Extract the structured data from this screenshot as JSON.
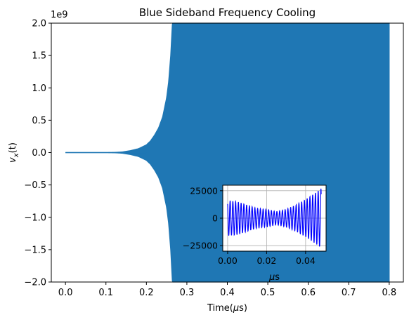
{
  "chart_data": [
    {
      "type": "area",
      "title": "Blue Sideband Frequency Cooling",
      "xlabel": "Time(μs)",
      "ylabel": "v_x(t)",
      "ylabel_main": "v",
      "ylabel_sub": "x",
      "ylabel_rest": "(t)",
      "offset_text": "1e9",
      "xlim": [
        -0.035,
        0.835
      ],
      "ylim": [
        -2.0,
        2.0
      ],
      "xticks": [
        0.0,
        0.1,
        0.2,
        0.3,
        0.4,
        0.5,
        0.6,
        0.7,
        0.8
      ],
      "xtick_labels": [
        "0.0",
        "0.1",
        "0.2",
        "0.3",
        "0.4",
        "0.5",
        "0.6",
        "0.7",
        "0.8"
      ],
      "yticks": [
        -2.0,
        -1.5,
        -1.0,
        -0.5,
        0.0,
        0.5,
        1.0,
        1.5,
        2.0
      ],
      "ytick_labels": [
        "−2.0",
        "−1.5",
        "−1.0",
        "−0.5",
        "0.0",
        "0.5",
        "1.0",
        "1.5",
        "2.0"
      ],
      "grid": false,
      "color": "#1f77b4",
      "envelope": {
        "x": [
          0.0,
          0.1,
          0.12,
          0.14,
          0.16,
          0.18,
          0.2,
          0.21,
          0.22,
          0.23,
          0.24,
          0.25,
          0.255,
          0.26,
          0.265,
          0.27,
          0.8
        ],
        "amplitude": [
          0.0,
          0.0,
          0.003,
          0.01,
          0.03,
          0.06,
          0.12,
          0.18,
          0.27,
          0.38,
          0.55,
          0.85,
          1.1,
          1.5,
          2.1,
          2.6,
          2.6
        ]
      }
    },
    {
      "type": "line",
      "inset": true,
      "xlabel": "μs",
      "xlim": [
        -0.0025,
        0.0505
      ],
      "ylim": [
        -30000,
        30000
      ],
      "xticks": [
        0.0,
        0.02,
        0.04
      ],
      "xtick_labels": [
        "0.00",
        "0.02",
        "0.04"
      ],
      "yticks": [
        -25000,
        0,
        25000
      ],
      "ytick_labels": [
        "−25000",
        "0",
        "25000"
      ],
      "grid": true,
      "color": "#0000ff",
      "cycles": 34,
      "envelope": {
        "x": [
          0.0,
          0.005,
          0.01,
          0.015,
          0.02,
          0.025,
          0.03,
          0.035,
          0.04,
          0.045,
          0.048
        ],
        "amplitude": [
          16000,
          15000,
          12000,
          9000,
          8000,
          6000,
          8000,
          12000,
          17000,
          23000,
          27000
        ]
      }
    }
  ]
}
